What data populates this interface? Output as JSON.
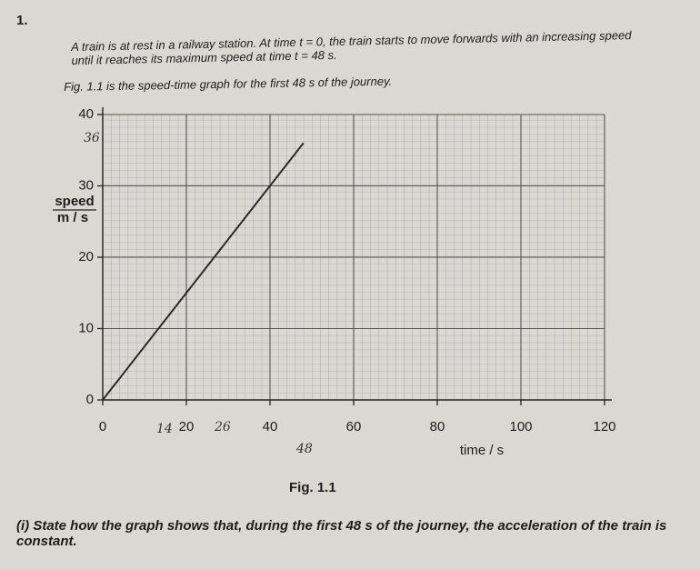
{
  "question_number": "1.",
  "intro": "A train is at rest in a railway station. At time t = 0, the train starts to move forwards with an increasing speed until it reaches its maximum speed at time t = 48 s.",
  "figure_reference": "Fig. 1.1 is the speed-time graph for the first 48 s of the journey.",
  "chart_data": {
    "type": "line",
    "x": [
      0,
      48
    ],
    "values": [
      0,
      36
    ],
    "color": "#2a2a2a",
    "xlabel": "time / s",
    "ylabel": "speed",
    "yunit": "m / s",
    "xlim": [
      0,
      120
    ],
    "ylim": [
      0,
      40
    ],
    "xticks": [
      0,
      20,
      40,
      60,
      80,
      100,
      120
    ],
    "yticks": [
      0,
      10,
      20,
      30,
      40
    ],
    "grid": true
  },
  "handwritten": [
    "36",
    "14",
    "26",
    "48"
  ],
  "caption": "Fig. 1.1",
  "question": "(i) State how the graph shows that, during the first 48 s of the journey, the acceleration of the train is constant."
}
